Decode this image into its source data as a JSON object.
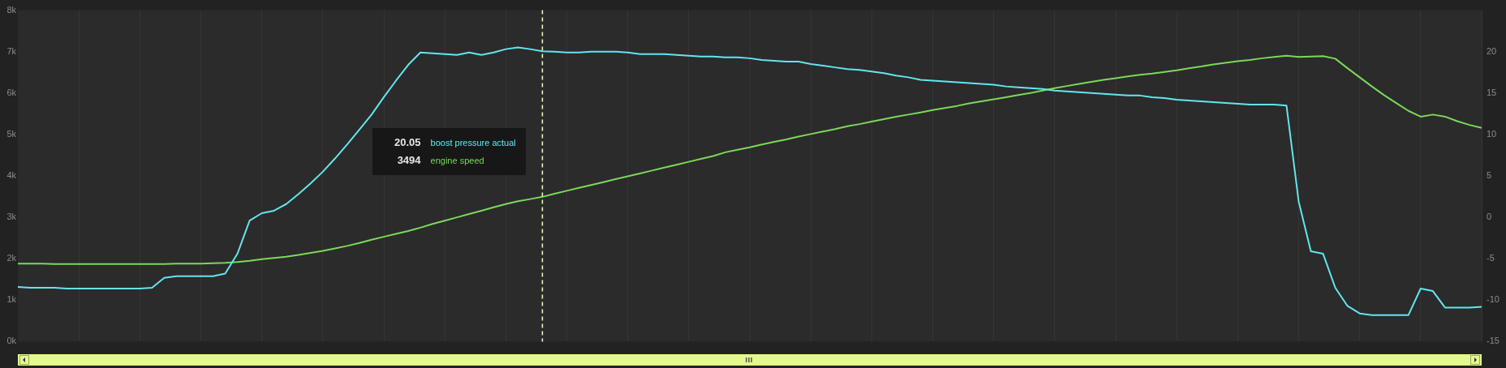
{
  "chart_data": {
    "type": "line",
    "categories": [
      null,
      null,
      null,
      null,
      null,
      null,
      null,
      null,
      null,
      null,
      null,
      null,
      null,
      null,
      null,
      null,
      null,
      null,
      null,
      null,
      null,
      null,
      null,
      null,
      null,
      null,
      null,
      null,
      null,
      null,
      null,
      null,
      null,
      null,
      null,
      null,
      null,
      null,
      null,
      null,
      null,
      null,
      null,
      null,
      null,
      null,
      null,
      null,
      null,
      null,
      null,
      null,
      null,
      null,
      null,
      null,
      null,
      null,
      null,
      null,
      null,
      null,
      null,
      null,
      null,
      null,
      null,
      null,
      null,
      null,
      null,
      null,
      null,
      null,
      null,
      null,
      null,
      null,
      null,
      null,
      null,
      null,
      null,
      null,
      null,
      null,
      null,
      null,
      null,
      null,
      null,
      null,
      null,
      null,
      null,
      null,
      null,
      null,
      null,
      null,
      null,
      null,
      null,
      null,
      null,
      null,
      null,
      null,
      null,
      null,
      null,
      null,
      null,
      null,
      null,
      null,
      null,
      null,
      null,
      null,
      null
    ],
    "series": [
      {
        "name": "boost pressure actual",
        "color": "#62e6ee",
        "axis": "y2",
        "values": [
          -8.4,
          -8.5,
          -8.5,
          -8.5,
          -8.6,
          -8.6,
          -8.6,
          -8.6,
          -8.6,
          -8.6,
          -8.6,
          -8.5,
          -7.3,
          -7.1,
          -7.1,
          -7.1,
          -7.1,
          -6.8,
          -4.4,
          -0.4,
          0.5,
          0.8,
          1.6,
          2.8,
          4.1,
          5.5,
          7.1,
          8.8,
          10.6,
          12.4,
          14.5,
          16.5,
          18.4,
          19.9,
          19.8,
          19.7,
          19.6,
          19.9,
          19.6,
          19.9,
          20.3,
          20.5,
          20.3,
          20.05,
          20.0,
          19.9,
          19.9,
          20.0,
          20.0,
          20.0,
          19.9,
          19.7,
          19.7,
          19.7,
          19.6,
          19.5,
          19.4,
          19.4,
          19.3,
          19.3,
          19.2,
          19.0,
          18.9,
          18.8,
          18.8,
          18.5,
          18.3,
          18.1,
          17.9,
          17.8,
          17.6,
          17.4,
          17.1,
          16.9,
          16.6,
          16.5,
          16.4,
          16.3,
          16.2,
          16.1,
          16.0,
          15.8,
          15.7,
          15.6,
          15.5,
          15.3,
          15.2,
          15.1,
          15.0,
          14.9,
          14.8,
          14.7,
          14.7,
          14.5,
          14.4,
          14.2,
          14.1,
          14.0,
          13.9,
          13.8,
          13.7,
          13.6,
          13.6,
          13.6,
          13.5,
          1.9,
          -4.1,
          -4.4,
          -8.5,
          -10.7,
          -11.6,
          -11.8,
          -11.8,
          -11.8,
          -11.8,
          -8.6,
          -8.9,
          -10.9,
          -10.9,
          -10.9,
          -10.8
        ]
      },
      {
        "name": "engine speed",
        "color": "#7bd85a",
        "values": [
          1880,
          1880,
          1880,
          1870,
          1870,
          1870,
          1870,
          1870,
          1870,
          1870,
          1870,
          1870,
          1870,
          1880,
          1880,
          1880,
          1890,
          1900,
          1920,
          1950,
          1990,
          2020,
          2050,
          2090,
          2140,
          2190,
          2250,
          2310,
          2380,
          2460,
          2530,
          2600,
          2670,
          2750,
          2840,
          2920,
          3000,
          3080,
          3160,
          3240,
          3320,
          3390,
          3440,
          3494,
          3570,
          3640,
          3710,
          3780,
          3850,
          3920,
          3990,
          4060,
          4130,
          4200,
          4270,
          4340,
          4410,
          4480,
          4570,
          4630,
          4690,
          4760,
          4820,
          4880,
          4950,
          5010,
          5070,
          5130,
          5200,
          5250,
          5310,
          5370,
          5430,
          5480,
          5530,
          5590,
          5640,
          5690,
          5750,
          5800,
          5850,
          5900,
          5950,
          6000,
          6060,
          6120,
          6170,
          6220,
          6270,
          6320,
          6360,
          6400,
          6440,
          6470,
          6510,
          6550,
          6600,
          6640,
          6690,
          6730,
          6770,
          6800,
          6840,
          6870,
          6900,
          6870,
          6880,
          6890,
          6830,
          6600,
          6380,
          6160,
          5950,
          5760,
          5570,
          5430,
          5480,
          5430,
          5320,
          5230,
          5160
        ]
      }
    ],
    "ylim": [
      0,
      8000
    ],
    "yticks": [
      {
        "value": 0,
        "label": "0k"
      },
      {
        "value": 1000,
        "label": "1k"
      },
      {
        "value": 2000,
        "label": "2k"
      },
      {
        "value": 3000,
        "label": "3k"
      },
      {
        "value": 4000,
        "label": "4k"
      },
      {
        "value": 5000,
        "label": "5k"
      },
      {
        "value": 6000,
        "label": "6k"
      },
      {
        "value": 7000,
        "label": "7k"
      },
      {
        "value": 8000,
        "label": "8k"
      }
    ],
    "y2lim": [
      -15,
      25
    ],
    "y2ticks": [
      -15,
      -10,
      -5,
      0,
      5,
      10,
      15,
      20
    ],
    "annotations": [
      "20.05",
      "3494"
    ],
    "grid": "x",
    "legend": "left",
    "tick_labels": "y"
  }
}
